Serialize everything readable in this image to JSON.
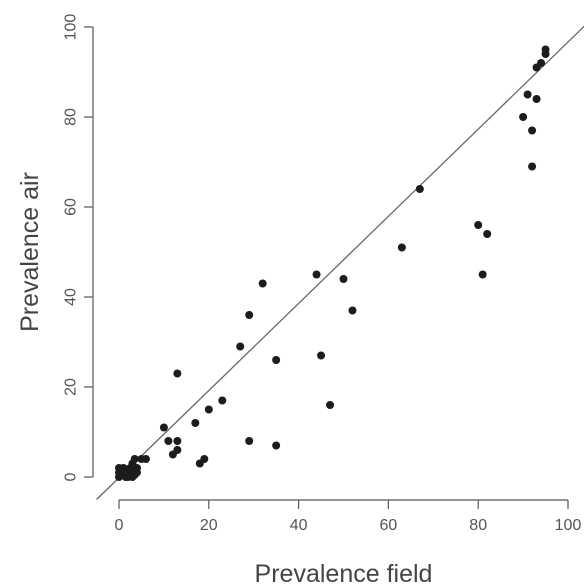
{
  "chart_data": {
    "type": "scatter",
    "title": "",
    "xlabel": "Prevalence field",
    "ylabel": "Prevalence air",
    "xlim": [
      0,
      100
    ],
    "ylim": [
      0,
      100
    ],
    "x_ticks": [
      "0",
      "20",
      "40",
      "60",
      "80",
      "100"
    ],
    "y_ticks": [
      "0",
      "20",
      "40",
      "60",
      "80",
      "100"
    ],
    "grid": false,
    "legend": "none",
    "point_color": "#1c1c1c",
    "line_color": "#666666",
    "fit_line": {
      "x": [
        -5,
        105
      ],
      "y": [
        -5,
        101.5
      ]
    },
    "series": [
      {
        "x": [
          0,
          0,
          0,
          0.5,
          1,
          1,
          1.5,
          2,
          2,
          2.5,
          3,
          3,
          3,
          3.5,
          3.5,
          4,
          4,
          5,
          6,
          10,
          11,
          12,
          13,
          13,
          13,
          17,
          18,
          19,
          20,
          23,
          27,
          29,
          29,
          32,
          35,
          35,
          44,
          45,
          47,
          50,
          52,
          63,
          67,
          80,
          81,
          82,
          90,
          91,
          92,
          92,
          93,
          93,
          94,
          95,
          95
        ],
        "y": [
          0,
          1,
          2,
          0.5,
          1,
          2,
          0,
          1.5,
          0,
          2,
          0,
          1,
          3,
          4,
          0.5,
          2,
          1,
          4,
          4,
          11,
          8,
          5,
          6,
          8,
          23,
          12,
          3,
          4,
          15,
          17,
          29,
          36,
          8,
          43,
          26,
          7,
          45,
          27,
          16,
          44,
          37,
          51,
          64,
          56,
          45,
          54,
          80,
          85,
          77,
          69,
          91,
          84,
          92,
          94,
          95
        ]
      }
    ]
  }
}
